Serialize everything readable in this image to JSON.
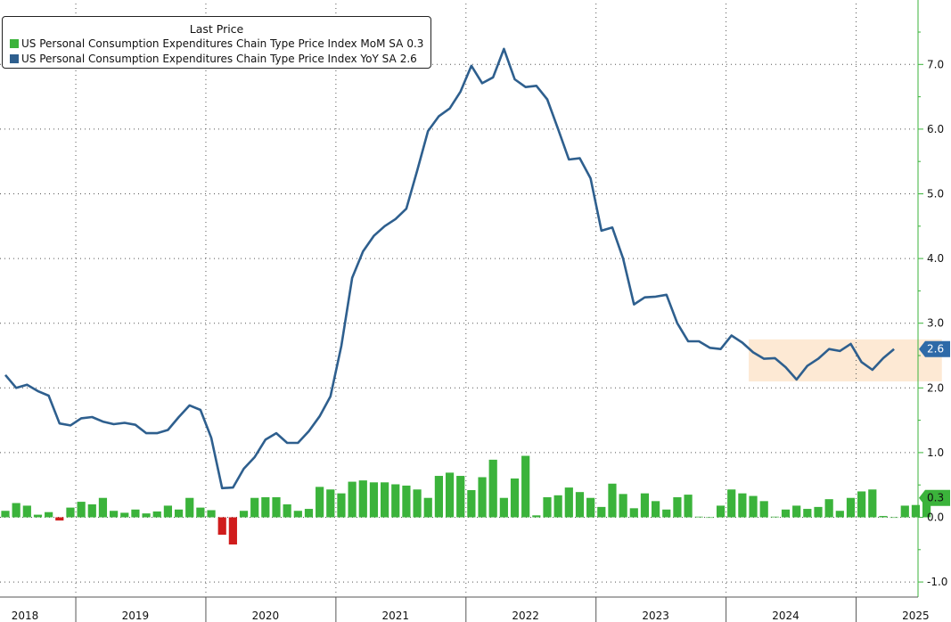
{
  "chart_data": {
    "type": "bar+line",
    "legend": {
      "title": "Last Price",
      "entries": [
        {
          "label": "US Personal Consumption Expenditures Chain Type Price Index MoM SA",
          "last_value": "0.3",
          "color": "#3bb33b"
        },
        {
          "label": "US Personal Consumption Expenditures Chain Type Price Index YoY SA",
          "last_value": "2.6",
          "color": "#2e5f8e"
        }
      ],
      "placement": "top-left"
    },
    "y_axis": {
      "side": "right",
      "range": [
        -1.0,
        7.9
      ],
      "ticks": [
        -1.0,
        0.0,
        1.0,
        2.0,
        3.0,
        4.0,
        5.0,
        6.0,
        7.0
      ],
      "tick_labels": [
        "-1.0",
        "0.0",
        "1.0",
        "2.0",
        "3.0",
        "4.0",
        "5.0",
        "6.0",
        "7.0"
      ]
    },
    "x_axis": {
      "start": "2018-06",
      "end": "2025-12",
      "year_labels": [
        "2018",
        "2019",
        "2020",
        "2021",
        "2022",
        "2023",
        "2024",
        "2025"
      ],
      "year_label_month": 6
    },
    "grid": true,
    "series": [
      {
        "name": "US Personal Consumption Expenditures Chain Type Price Index MoM SA",
        "type": "bar",
        "start": "2018-06",
        "positive_color": "#3bb33b",
        "negative_color": "#d01c1c",
        "values": [
          0.1,
          0.22,
          0.18,
          0.04,
          0.08,
          -0.05,
          0.15,
          0.24,
          0.2,
          0.3,
          0.1,
          0.07,
          0.12,
          0.06,
          0.09,
          0.18,
          0.12,
          0.3,
          0.15,
          0.11,
          -0.27,
          -0.42,
          0.1,
          0.3,
          0.31,
          0.31,
          0.2,
          0.1,
          0.13,
          0.47,
          0.43,
          0.37,
          0.55,
          0.57,
          0.54,
          0.54,
          0.51,
          0.49,
          0.43,
          0.3,
          0.64,
          0.69,
          0.64,
          0.42,
          0.62,
          0.89,
          0.3,
          0.6,
          0.95,
          0.03,
          0.31,
          0.34,
          0.46,
          0.39,
          0.3,
          0.16,
          0.52,
          0.36,
          0.14,
          0.37,
          0.25,
          0.12,
          0.31,
          0.35,
          0.01,
          0.0,
          0.18,
          0.43,
          0.37,
          0.33,
          0.25,
          0.01,
          0.12,
          0.18,
          0.13,
          0.16,
          0.28,
          0.1,
          0.3,
          0.4,
          0.43,
          0.02,
          0.0,
          0.18,
          0.19,
          0.28
        ],
        "last_value": "0.3",
        "label_color": "#3bb33b"
      },
      {
        "name": "US Personal Consumption Expenditures Chain Type Price Index YoY SA",
        "type": "line",
        "start": "2018-06",
        "color": "#2e5f8e",
        "values": [
          2.2,
          2.0,
          2.05,
          1.95,
          1.88,
          1.45,
          1.42,
          1.53,
          1.55,
          1.48,
          1.44,
          1.46,
          1.43,
          1.3,
          1.3,
          1.35,
          1.55,
          1.73,
          1.66,
          1.23,
          0.45,
          0.46,
          0.75,
          0.93,
          1.2,
          1.3,
          1.15,
          1.15,
          1.33,
          1.56,
          1.87,
          2.65,
          3.7,
          4.11,
          4.35,
          4.5,
          4.61,
          4.77,
          5.36,
          5.97,
          6.2,
          6.32,
          6.58,
          6.98,
          6.71,
          6.8,
          7.24,
          6.77,
          6.65,
          6.67,
          6.46,
          6.0,
          5.53,
          5.55,
          5.24,
          4.43,
          4.48,
          4.0,
          3.29,
          3.4,
          3.41,
          3.44,
          3.0,
          2.72,
          2.72,
          2.62,
          2.6,
          2.81,
          2.7,
          2.55,
          2.45,
          2.46,
          2.32,
          2.13,
          2.34,
          2.45,
          2.6,
          2.57,
          2.68,
          2.4,
          2.28,
          2.46,
          2.6
        ],
        "last_value": "2.6",
        "label_color": "#2e6aa8"
      }
    ],
    "annotations": [
      {
        "type": "shaded_band",
        "x_start": "2024-03",
        "x_end": "2025-08",
        "y_start": 2.1,
        "y_end": 2.75,
        "color": "#fde9d4"
      }
    ]
  }
}
